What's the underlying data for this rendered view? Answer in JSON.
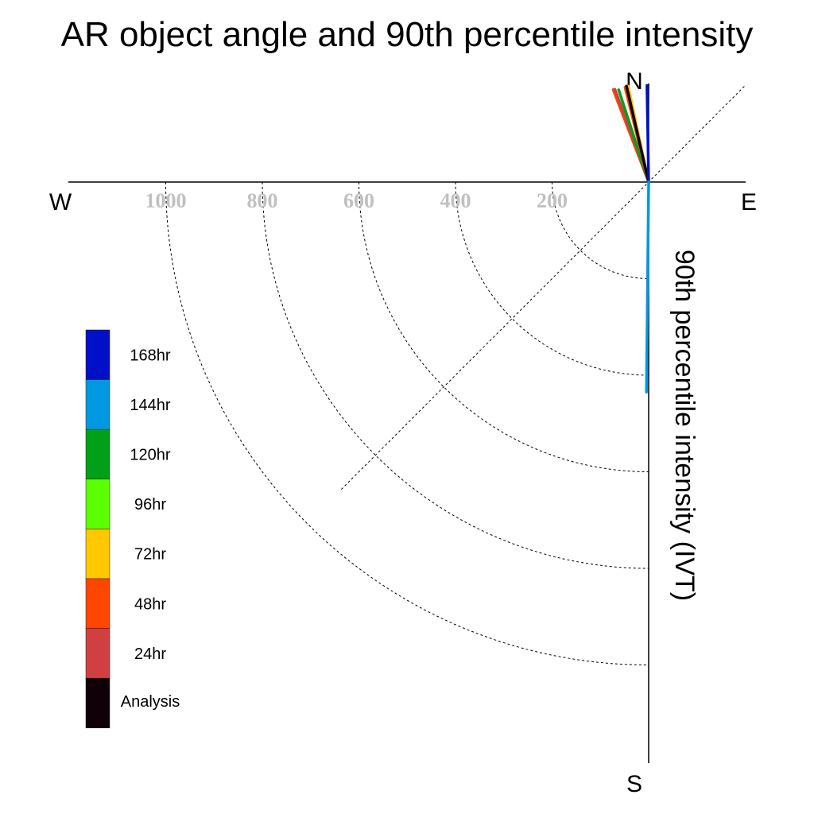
{
  "chart_data": {
    "type": "polar-quadrant",
    "title": "AR object angle and 90th percentile intensity",
    "ylabel": "90th percentile intensity (IVT)",
    "compass": {
      "north": "N",
      "south": "S",
      "east": "E",
      "west": "W"
    },
    "radial_ticks": [
      {
        "value": 200,
        "label": "200"
      },
      {
        "value": 400,
        "label": "400"
      },
      {
        "value": 600,
        "label": "600"
      },
      {
        "value": 800,
        "label": "800"
      },
      {
        "value": 1000,
        "label": "1000"
      }
    ],
    "rmax": 1200,
    "legend": [
      {
        "label": "168hr",
        "color": "#0010c8"
      },
      {
        "label": "144hr",
        "color": "#0098e0"
      },
      {
        "label": "120hr",
        "color": "#00a018"
      },
      {
        "label": "96hr",
        "color": "#5aff00"
      },
      {
        "label": "72hr",
        "color": "#ffc800"
      },
      {
        "label": "48hr",
        "color": "#ff4600"
      },
      {
        "label": "24hr",
        "color": "#d04040"
      },
      {
        "label": "Analysis",
        "color": "#100008"
      }
    ],
    "series": [
      {
        "color": "#ff4600",
        "angle_deg": -21,
        "intensity": 205
      },
      {
        "color": "#d04040",
        "angle_deg": -20,
        "intensity": 204
      },
      {
        "color": "#00a018",
        "angle_deg": -18,
        "intensity": 201
      },
      {
        "color": "#5aff00",
        "angle_deg": -13,
        "intensity": 204
      },
      {
        "color": "#ffc800",
        "angle_deg": -12,
        "intensity": 203
      },
      {
        "color": "#ff4600",
        "angle_deg": -14,
        "intensity": 202
      },
      {
        "color": "#100008",
        "angle_deg": -13,
        "intensity": 204
      },
      {
        "color": "#0010c8",
        "angle_deg": -1,
        "intensity": 200
      },
      {
        "color": "#0098e0",
        "angle_deg": 180.6,
        "intensity": 435
      }
    ]
  }
}
